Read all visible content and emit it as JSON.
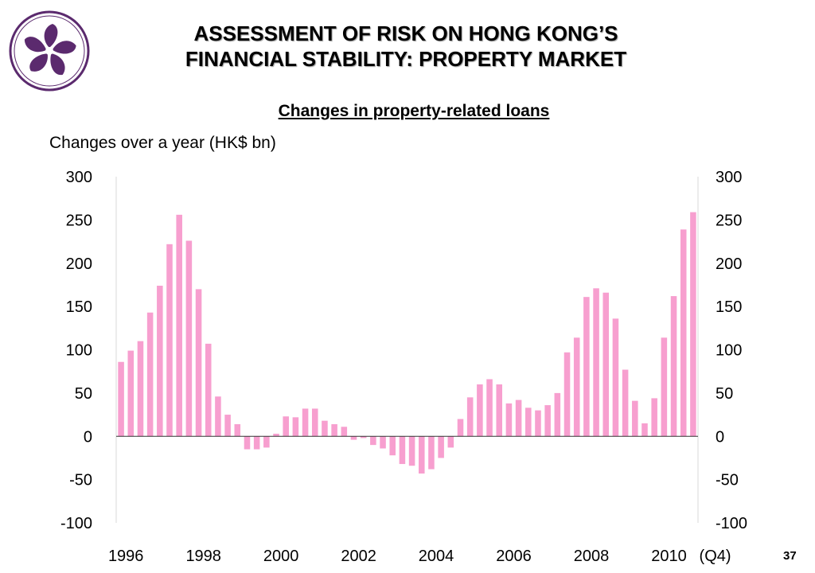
{
  "slide": {
    "title_line1": "ASSESSMENT OF RISK ON HONG KONG’S",
    "title_line2": "FINANCIAL STABILITY: PROPERTY MARKET",
    "page_number": "37",
    "logo_icon": "bauhinia-flower-logo",
    "logo_color": "#5b2a6e"
  },
  "chart_data": {
    "type": "bar",
    "title": "Changes in property-related loans",
    "ylabel": "Changes over a year (HK$ bn)",
    "xlabel": "",
    "ylim": [
      -100,
      300
    ],
    "yticks": [
      "300",
      "250",
      "200",
      "150",
      "100",
      "50",
      "0",
      "-50",
      "-100"
    ],
    "y_axis_both_sides": true,
    "grid": false,
    "bar_color": "#f79fcf",
    "x_tick_labels": [
      "1996",
      "1998",
      "2000",
      "2002",
      "2004",
      "2006",
      "2008",
      "2010"
    ],
    "x_end_note": "(Q4)",
    "frequency": "quarterly",
    "period_start": "1996 Q1",
    "period_end": "2010 Q4",
    "values": [
      86,
      99,
      110,
      143,
      174,
      222,
      256,
      226,
      170,
      107,
      46,
      25,
      14,
      -15,
      -15,
      -13,
      3,
      23,
      22,
      32,
      32,
      18,
      14,
      11,
      -4,
      -2,
      -10,
      -14,
      -22,
      -32,
      -34,
      -43,
      -38,
      -25,
      -13,
      20,
      45,
      60,
      66,
      60,
      38,
      42,
      33,
      30,
      36,
      50,
      97,
      114,
      161,
      171,
      166,
      136,
      77,
      41,
      15,
      44,
      114,
      162,
      239,
      259
    ]
  }
}
